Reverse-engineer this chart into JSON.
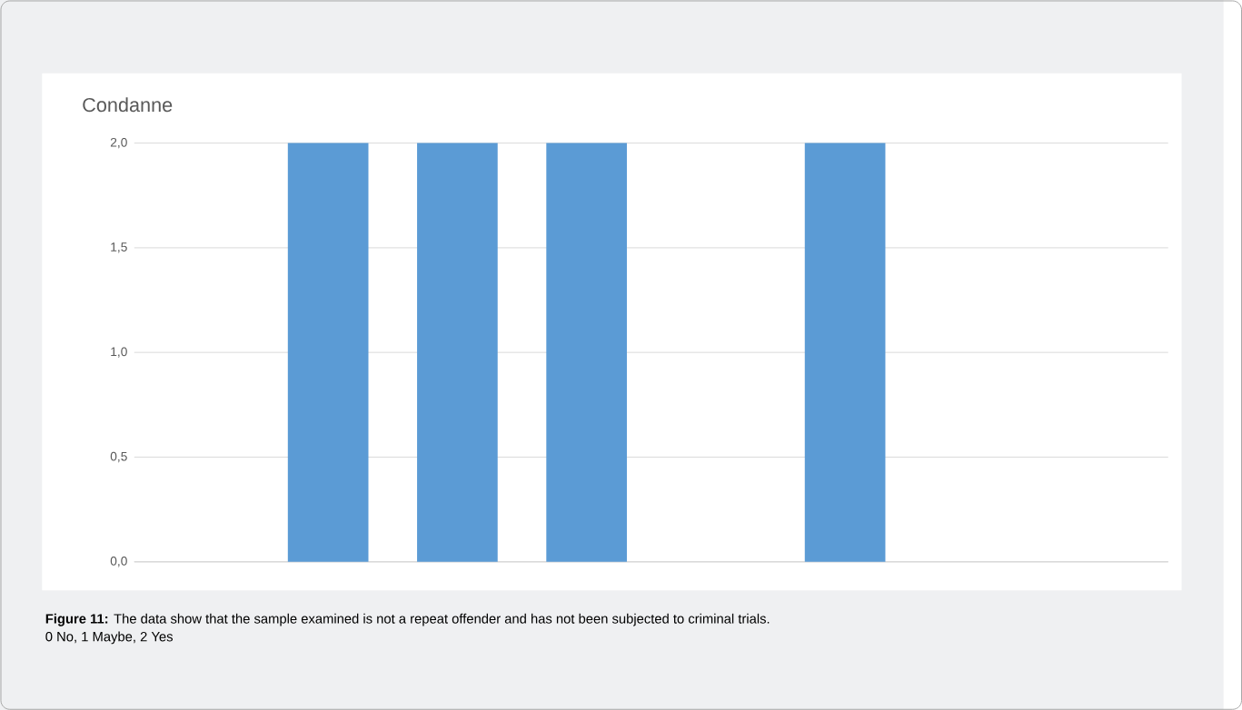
{
  "chart_data": {
    "type": "bar",
    "title": "Condanne",
    "categories": [
      null,
      null,
      null,
      null,
      null,
      null,
      null,
      null
    ],
    "values": [
      0,
      2,
      2,
      2,
      0,
      2,
      0,
      0
    ],
    "color": "#5b9bd5",
    "ylim": [
      0,
      2
    ],
    "yticks": [
      {
        "value": 0,
        "label": "0,0"
      },
      {
        "value": 0.5,
        "label": "0,5"
      },
      {
        "value": 1,
        "label": "1,0"
      },
      {
        "value": 1.5,
        "label": "1,5"
      },
      {
        "value": 2,
        "label": "2,0"
      }
    ],
    "grid": "y",
    "annotations": [
      "**Figure 11:** The data show that the sample examined is not a repeat offender and has not been subjected to criminal trials.",
      "0 No, 1 Maybe, 2 Yes"
    ]
  }
}
